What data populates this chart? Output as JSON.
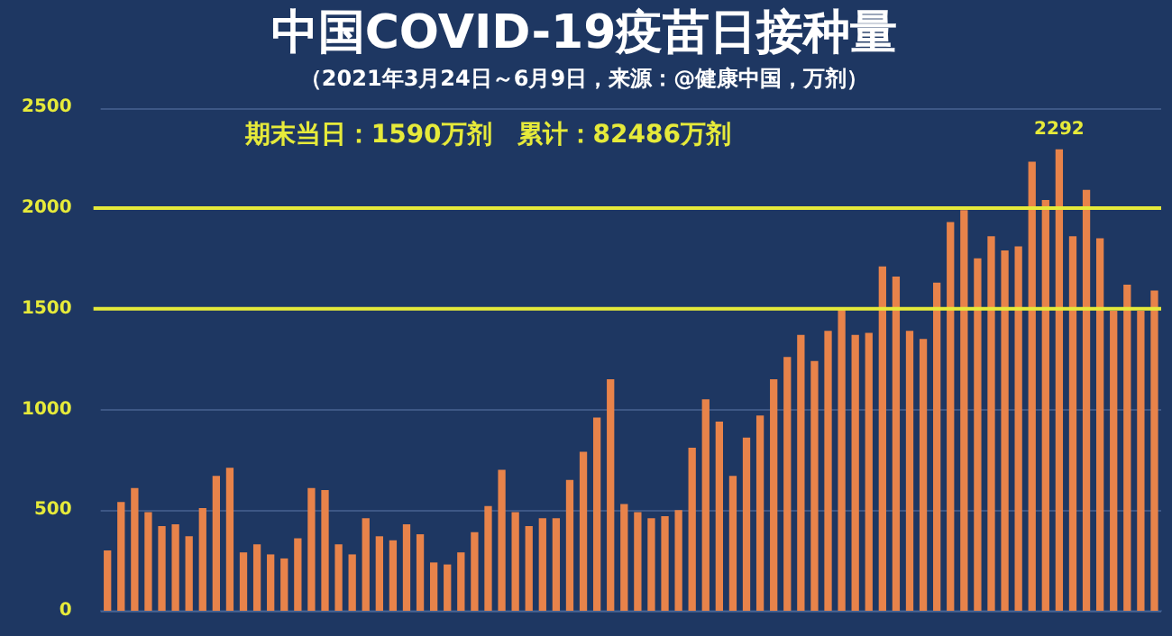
{
  "chart_data": {
    "type": "bar",
    "title": "中国COVID-19疫苗日接种量",
    "subtitle": "（2021年3月24日～6月9日，来源：@健康中国，万剂）",
    "annotations": [
      "期末当日：1590万剂　累计：82486万剂"
    ],
    "categories": [
      null,
      null,
      null,
      null,
      null,
      null,
      null,
      null,
      null,
      null,
      null,
      null,
      null,
      null,
      null,
      null,
      null,
      null,
      null,
      null,
      null,
      null,
      null,
      null,
      null,
      null,
      null,
      null,
      null,
      null,
      null,
      null,
      null,
      null,
      null,
      null,
      null,
      null,
      null,
      null,
      null,
      null,
      null,
      null,
      null,
      null,
      null,
      null,
      null,
      null,
      null,
      null,
      null,
      null,
      null,
      null,
      null,
      null,
      null,
      null,
      null,
      null,
      null,
      null,
      null,
      null,
      null,
      null,
      null,
      null,
      null,
      null,
      null,
      null,
      null,
      null,
      null,
      null
    ],
    "values": [
      300,
      540,
      610,
      490,
      420,
      430,
      370,
      510,
      670,
      710,
      290,
      330,
      280,
      260,
      360,
      610,
      600,
      330,
      280,
      460,
      370,
      350,
      430,
      380,
      240,
      230,
      290,
      390,
      520,
      700,
      490,
      420,
      460,
      460,
      650,
      790,
      960,
      1150,
      530,
      490,
      460,
      470,
      500,
      810,
      1050,
      940,
      670,
      860,
      970,
      1150,
      1260,
      1370,
      1240,
      1390,
      1500,
      1370,
      1380,
      1710,
      1660,
      1390,
      1350,
      1630,
      1930,
      1990,
      1750,
      1860,
      1790,
      1810,
      2230,
      2040,
      2292,
      1860,
      2090,
      1850,
      1490,
      1620,
      1490,
      1590
    ],
    "value_labels": [
      null,
      null,
      null,
      null,
      null,
      null,
      null,
      null,
      null,
      null,
      null,
      null,
      null,
      null,
      null,
      null,
      null,
      null,
      null,
      null,
      null,
      null,
      null,
      null,
      null,
      null,
      null,
      null,
      null,
      null,
      null,
      null,
      null,
      null,
      null,
      null,
      null,
      null,
      null,
      null,
      null,
      null,
      null,
      null,
      null,
      null,
      null,
      null,
      null,
      null,
      null,
      null,
      null,
      null,
      null,
      null,
      null,
      null,
      null,
      null,
      null,
      null,
      null,
      null,
      null,
      null,
      null,
      null,
      null,
      null,
      "2292",
      null,
      null,
      null,
      null,
      null,
      null,
      null
    ],
    "color": "#e8834a",
    "ylim": [
      0,
      2500
    ],
    "yticks": [
      0,
      500,
      1000,
      1500,
      2000,
      2500
    ],
    "grid": "y",
    "tick_labels": "y",
    "ref_lines": [
      {
        "axis": "y",
        "value": 2000,
        "color": "#e6ea3a"
      },
      {
        "axis": "y",
        "value": 1500,
        "color": "#e6ea3a"
      }
    ]
  }
}
